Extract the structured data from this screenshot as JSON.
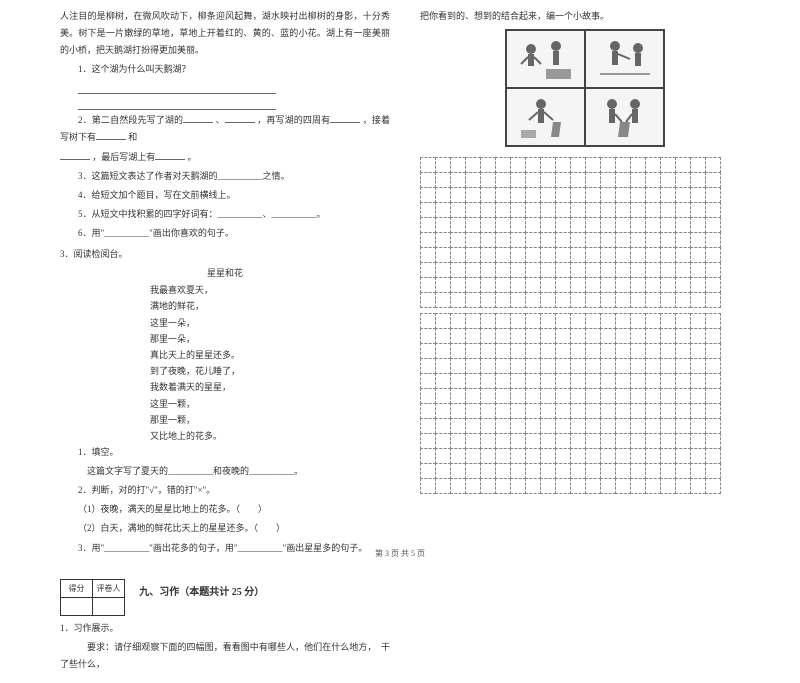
{
  "leftCol": {
    "intro": "人注目的是柳树，在微风吹动下，柳条迎风起舞，湖水映衬出柳树的身影，十分秀美。树下是一片嫩绿的草地，草地上开着红的、黄的、蓝的小花。湖上有一座美丽的小桥，把天鹅湖打扮得更加美丽。",
    "q1": "1．这个湖为什么叫天鹅湖？",
    "q2a": "2．第二自然段先写了湖的",
    "q2b": "、",
    "q2c": "，再写湖的四周有",
    "q2d": "，接着写树下有",
    "q2e": "和",
    "q2f": "，最后写湖上有",
    "q2g": "。",
    "q3": "3．这篇短文表达了作者对天鹅湖的__________之情。",
    "q4": "4．给短文加个题目，写在文前横线上。",
    "q5": "5．从短文中找积累的四字好词有：__________、__________。",
    "q6": "6．用\"__________\"画出你喜欢的句子。",
    "read3": "3．阅读检阅台。",
    "poemTitle": "星星和花",
    "poem": [
      "我最喜欢夏天，",
      "满地的鲜花，",
      "这里一朵，",
      "那里一朵，",
      "真比天上的星星还多。",
      "到了夜晚，花儿睡了，",
      "我数着满天的星星，",
      "这里一颗，",
      "那里一颗，",
      "又比地上的花多。"
    ],
    "p1": "1．填空。",
    "p1a": "这篇文字写了夏天的__________和夜晚的__________。",
    "p2": "2．判断，对的打\"√\"，错的打\"×\"。",
    "p2a": "（1）夜晚，满天的星星比地上的花多。（　　）",
    "p2b": "（2）白天，满地的鲜花比天上的星星还多。（　　）",
    "p3": "3．用\"__________\"画出花多的句子，用\"__________\"画出星星多的句子。",
    "scoreL": "得分",
    "scoreR": "评卷人",
    "sec9": "九、习作（本题共计 25 分）",
    "w1": "1．习作展示。",
    "w1req": "要求：请仔细观察下面的四幅图，看看图中有哪些人，他们在什么地方，　干了些什么，"
  },
  "rightCol": {
    "cont": "把你看到的、想到的结合起来，编一个小故事。"
  },
  "footer": "第 3 页  共 5 页",
  "grid": {
    "rows": 10,
    "cols": 20,
    "rows2": 12
  },
  "colors": {
    "text": "#333333",
    "border": "#888888"
  }
}
